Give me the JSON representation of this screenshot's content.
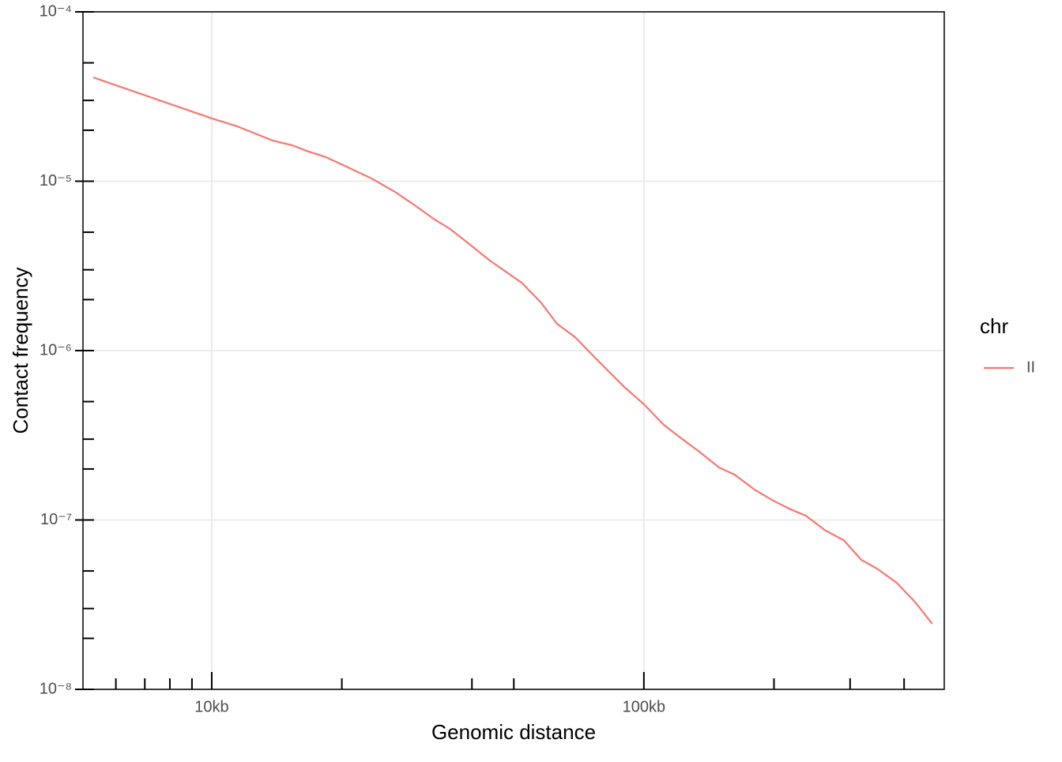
{
  "chart_data": {
    "type": "line",
    "x_label": "Genomic distance",
    "y_label": "Contact frequency",
    "log_x": true,
    "log_y": true,
    "grid": true,
    "legend_title": "chr",
    "legend_position": "right",
    "xlim": [
      5035,
      495500
    ],
    "ylim": [
      1e-08,
      0.0001
    ],
    "xticks": [
      {
        "value": 10000,
        "label": "10kb"
      },
      {
        "value": 100000,
        "label": "100kb"
      }
    ],
    "x_minor_ticks": [
      6000,
      7000,
      8000,
      9000,
      20000,
      40000,
      50000,
      200000,
      300000,
      400000
    ],
    "yticks": [
      {
        "value": 1e-08,
        "label": "10⁻⁸"
      },
      {
        "value": 1e-07,
        "label": "10⁻⁷"
      },
      {
        "value": 1e-06,
        "label": "10⁻⁶"
      },
      {
        "value": 1e-05,
        "label": "10⁻⁵"
      },
      {
        "value": 0.0001,
        "label": "10⁻⁴"
      }
    ],
    "y_minor_ticks": [
      2e-08,
      3e-08,
      5e-08,
      2e-07,
      3e-07,
      5e-07,
      2e-06,
      3e-06,
      5e-06,
      2e-05,
      3e-05,
      5e-05
    ],
    "x": [
      5320,
      10000,
      11440,
      13830,
      15360,
      16710,
      18340,
      19950,
      23400,
      26550,
      29500,
      32800,
      35650,
      39600,
      44000,
      52100,
      57800,
      62900,
      69300,
      77700,
      90000,
      100000,
      111100,
      121900,
      134300,
      149300,
      162300,
      180300,
      200400,
      217800,
      237100,
      263300,
      290100,
      318300,
      346100,
      384400,
      423600,
      464500
    ],
    "series": [
      {
        "name": "II",
        "color": "#F8766D",
        "values": [
          4.1e-05,
          2.35e-05,
          2.11e-05,
          1.74e-05,
          1.63e-05,
          1.5e-05,
          1.39e-05,
          1.26e-05,
          1.04e-05,
          8.65e-06,
          7.21e-06,
          5.94e-06,
          5.22e-06,
          4.22e-06,
          3.4e-06,
          2.52e-06,
          1.92e-06,
          1.44e-06,
          1.2e-06,
          8.89e-07,
          6.11e-07,
          4.82e-07,
          3.65e-07,
          3.04e-07,
          2.53e-07,
          2.04e-07,
          1.85e-07,
          1.51e-07,
          1.29e-07,
          1.16e-07,
          1.06e-07,
          8.65e-08,
          7.6e-08,
          5.82e-08,
          5.16e-08,
          4.26e-08,
          3.29e-08,
          2.44e-08
        ]
      }
    ]
  }
}
